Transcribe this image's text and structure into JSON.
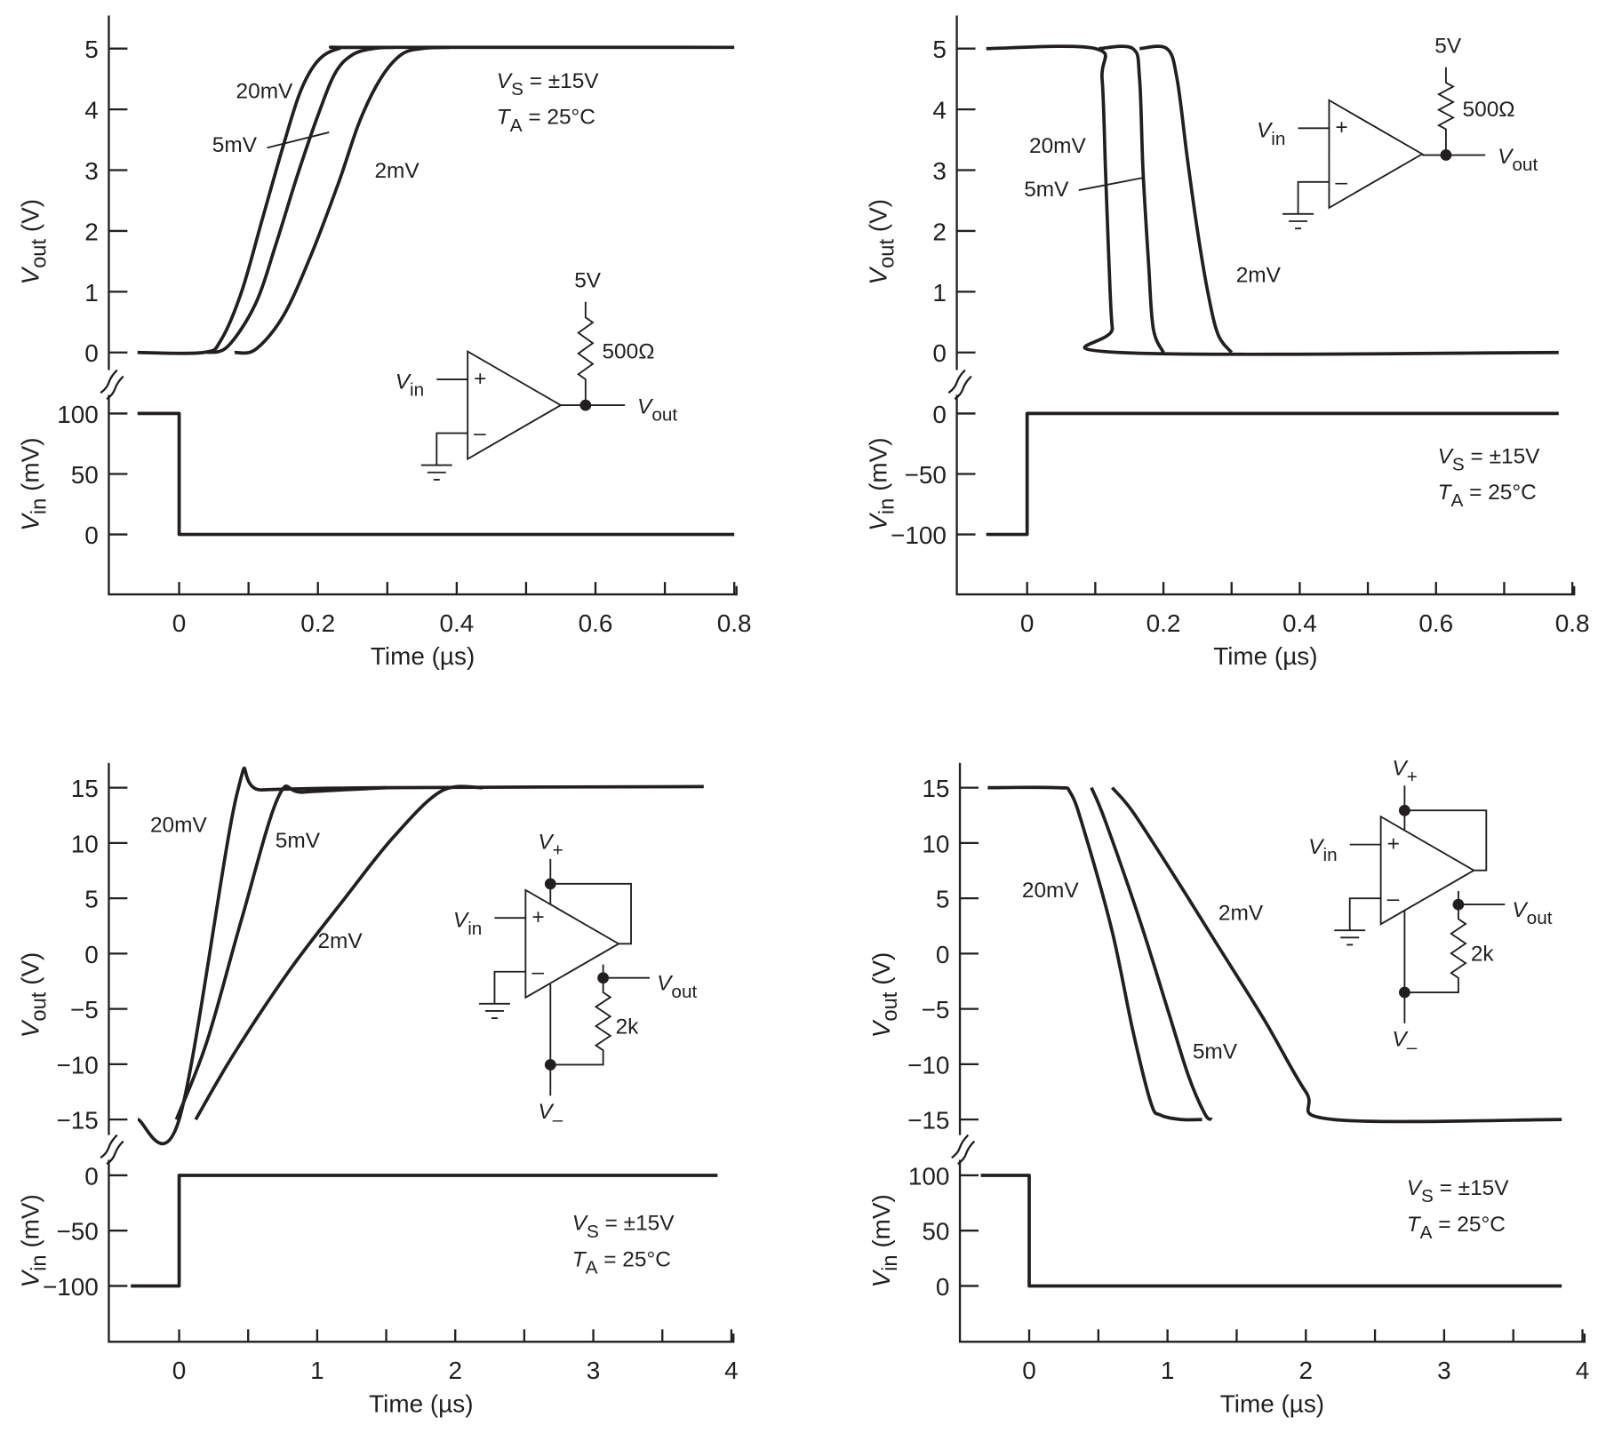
{
  "chart_data": [
    {
      "type": "line",
      "xlabel": "Time (µs)",
      "xlim": [
        -0.1,
        0.8
      ],
      "xticks": [
        "0",
        "0.2",
        "0.4",
        "0.6",
        "0.8"
      ],
      "xtick_values": [
        0,
        0.2,
        0.4,
        0.6,
        0.8
      ],
      "top": {
        "ylabel": {
          "var": "V",
          "sub": "out",
          "unit": " (V)"
        },
        "yticks": [
          0,
          1,
          2,
          3,
          4,
          5
        ],
        "ylim": [
          0,
          5
        ]
      },
      "bottom": {
        "ylabel": {
          "var": "V",
          "sub": "in",
          "unit": " (mV)"
        },
        "yticks": [
          0,
          50,
          100
        ],
        "ylim": [
          0,
          100
        ],
        "input": [
          [
            -0.06,
            100
          ],
          [
            0,
            100
          ],
          [
            0,
            0
          ],
          [
            0.8,
            0
          ]
        ]
      },
      "series": [
        {
          "name": "20mV",
          "points": [
            [
              -0.06,
              0
            ],
            [
              0.035,
              0
            ],
            [
              0.06,
              0.2
            ],
            [
              0.09,
              1
            ],
            [
              0.12,
              2.2
            ],
            [
              0.15,
              3.4
            ],
            [
              0.175,
              4.3
            ],
            [
              0.2,
              4.8
            ],
            [
              0.23,
              5
            ],
            [
              0.27,
              5.02
            ],
            [
              0.8,
              5.02
            ]
          ]
        },
        {
          "name": "5mV",
          "points": [
            [
              0.04,
              0
            ],
            [
              0.07,
              0.1
            ],
            [
              0.11,
              0.8
            ],
            [
              0.14,
              1.8
            ],
            [
              0.17,
              2.9
            ],
            [
              0.2,
              3.9
            ],
            [
              0.225,
              4.6
            ],
            [
              0.25,
              4.9
            ],
            [
              0.28,
              5
            ],
            [
              0.31,
              5.02
            ]
          ]
        },
        {
          "name": "2mV",
          "points": [
            [
              0.08,
              0
            ],
            [
              0.11,
              0.05
            ],
            [
              0.15,
              0.6
            ],
            [
              0.19,
              1.6
            ],
            [
              0.23,
              2.8
            ],
            [
              0.26,
              3.8
            ],
            [
              0.29,
              4.5
            ],
            [
              0.32,
              4.9
            ],
            [
              0.35,
              5
            ],
            [
              0.39,
              5.02
            ]
          ]
        }
      ],
      "curve_labels": [
        "20mV",
        "5mV",
        "2mV"
      ],
      "conditions": {
        "vs": {
          "var": "V",
          "sub": "S",
          "rest": " = ±15V"
        },
        "ta": {
          "var": "T",
          "sub": "A",
          "rest": " = 25°C"
        }
      },
      "circuit": {
        "supply": "5V",
        "resistor": "500Ω",
        "vin": {
          "var": "V",
          "sub": "in"
        },
        "vout": {
          "var": "V",
          "sub": "out"
        },
        "plus": "+",
        "minus": "–"
      }
    },
    {
      "type": "line",
      "xlabel": "Time (µs)",
      "xlim": [
        -0.1,
        0.8
      ],
      "xticks": [
        "0",
        "0.2",
        "0.4",
        "0.6",
        "0.8"
      ],
      "xtick_values": [
        0,
        0.2,
        0.4,
        0.6,
        0.8
      ],
      "top": {
        "ylabel": {
          "var": "V",
          "sub": "out",
          "unit": " (V)"
        },
        "yticks": [
          0,
          1,
          2,
          3,
          4,
          5
        ],
        "ylim": [
          0,
          5
        ]
      },
      "bottom": {
        "ylabel": {
          "var": "V",
          "sub": "in",
          "unit": " (mV)"
        },
        "yticks": [
          -100,
          -50,
          0
        ],
        "ylim": [
          -100,
          0
        ],
        "input": [
          [
            -0.06,
            -100
          ],
          [
            0,
            -100
          ],
          [
            0,
            0
          ],
          [
            0.78,
            0
          ]
        ]
      },
      "series": [
        {
          "name": "20mV",
          "points": [
            [
              -0.06,
              5
            ],
            [
              0.1,
              5
            ],
            [
              0.11,
              4.5
            ],
            [
              0.115,
              3
            ],
            [
              0.12,
              1.5
            ],
            [
              0.125,
              0.4
            ],
            [
              0.135,
              0
            ],
            [
              0.78,
              0
            ]
          ]
        },
        {
          "name": "5mV",
          "points": [
            [
              0.105,
              5
            ],
            [
              0.155,
              5
            ],
            [
              0.165,
              4.5
            ],
            [
              0.17,
              3
            ],
            [
              0.178,
              1.5
            ],
            [
              0.185,
              0.4
            ],
            [
              0.2,
              0
            ]
          ]
        },
        {
          "name": "2mV",
          "points": [
            [
              0.165,
              5
            ],
            [
              0.205,
              5
            ],
            [
              0.22,
              4.5
            ],
            [
              0.235,
              3.2
            ],
            [
              0.25,
              2
            ],
            [
              0.265,
              1
            ],
            [
              0.28,
              0.3
            ],
            [
              0.3,
              0
            ]
          ]
        }
      ],
      "curve_labels": [
        "20mV",
        "5mV",
        "2mV"
      ],
      "conditions": {
        "vs": {
          "var": "V",
          "sub": "S",
          "rest": " = ±15V"
        },
        "ta": {
          "var": "T",
          "sub": "A",
          "rest": " = 25°C"
        }
      },
      "circuit": {
        "supply": "5V",
        "resistor": "500Ω",
        "vin": {
          "var": "V",
          "sub": "in"
        },
        "vout": {
          "var": "V",
          "sub": "out"
        },
        "plus": "+",
        "minus": "–"
      }
    },
    {
      "type": "line",
      "xlabel": "Time (µs)",
      "xlim": [
        -0.5,
        4
      ],
      "xticks": [
        "0",
        "1",
        "2",
        "3",
        "4"
      ],
      "xtick_values": [
        0,
        1,
        2,
        3,
        4
      ],
      "top": {
        "ylabel": {
          "var": "V",
          "sub": "out",
          "unit": " (V)"
        },
        "yticks": [
          -15,
          -10,
          -5,
          0,
          5,
          10,
          15
        ],
        "ylim": [
          -15,
          15
        ]
      },
      "bottom": {
        "ylabel": {
          "var": "V",
          "sub": "in",
          "unit": " (mV)"
        },
        "yticks": [
          -100,
          -50,
          0
        ],
        "ylim": [
          -100,
          0
        ],
        "input": [
          [
            -0.35,
            -100
          ],
          [
            0,
            -100
          ],
          [
            0,
            0
          ],
          [
            3.9,
            0
          ]
        ]
      },
      "series": [
        {
          "name": "20mV",
          "points": [
            [
              -0.3,
              -15
            ],
            [
              0,
              -15
            ],
            [
              0.42,
              14.5
            ],
            [
              0.6,
              14.8
            ],
            [
              1.5,
              15
            ],
            [
              3.8,
              15.1
            ]
          ]
        },
        {
          "name": "5mV",
          "points": [
            [
              -0.02,
              -15
            ],
            [
              0.2,
              -8
            ],
            [
              0.45,
              3
            ],
            [
              0.72,
              14.2
            ],
            [
              0.9,
              14.6
            ],
            [
              1.5,
              15
            ]
          ]
        },
        {
          "name": "2mV",
          "points": [
            [
              0.12,
              -15
            ],
            [
              0.4,
              -9
            ],
            [
              0.8,
              -1.5
            ],
            [
              1.2,
              5
            ],
            [
              1.55,
              10.5
            ],
            [
              1.9,
              14.7
            ],
            [
              2.2,
              15
            ]
          ]
        }
      ],
      "curve_labels": [
        "20mV",
        "5mV",
        "2mV"
      ],
      "conditions": {
        "vs": {
          "var": "V",
          "sub": "S",
          "rest": " = ±15V"
        },
        "ta": {
          "var": "T",
          "sub": "A",
          "rest": " = 25°C"
        }
      },
      "circuit": {
        "vplus": {
          "var": "V",
          "sub": "+"
        },
        "vminus": {
          "var": "V",
          "sub": "–"
        },
        "resistor": "2k",
        "vin": {
          "var": "V",
          "sub": "in"
        },
        "vout": {
          "var": "V",
          "sub": "out"
        },
        "plus": "+",
        "minus": "–"
      }
    },
    {
      "type": "line",
      "xlabel": "Time (µs)",
      "xlim": [
        -0.5,
        4
      ],
      "xticks": [
        "0",
        "1",
        "2",
        "3",
        "4"
      ],
      "xtick_values": [
        0,
        1,
        2,
        3,
        4
      ],
      "top": {
        "ylabel": {
          "var": "V",
          "sub": "out",
          "unit": " (V)"
        },
        "yticks": [
          -15,
          -10,
          -5,
          0,
          5,
          10,
          15
        ],
        "ylim": [
          -15,
          15
        ]
      },
      "bottom": {
        "ylabel": {
          "var": "V",
          "sub": "in",
          "unit": " (mV)"
        },
        "yticks": [
          0,
          50,
          100
        ],
        "ylim": [
          0,
          100
        ],
        "input": [
          [
            -0.35,
            100
          ],
          [
            0,
            100
          ],
          [
            0,
            0
          ],
          [
            3.85,
            0
          ]
        ]
      },
      "series": [
        {
          "name": "20mV",
          "points": [
            [
              -0.3,
              15
            ],
            [
              0.2,
              15
            ],
            [
              0.3,
              14.5
            ],
            [
              0.4,
              11
            ],
            [
              0.6,
              2
            ],
            [
              0.75,
              -7
            ],
            [
              0.88,
              -13.5
            ],
            [
              0.95,
              -14.6
            ],
            [
              1.1,
              -15
            ],
            [
              1.25,
              -15
            ]
          ]
        },
        {
          "name": "5mV",
          "points": [
            [
              0.45,
              15
            ],
            [
              0.55,
              12
            ],
            [
              0.8,
              3
            ],
            [
              1.0,
              -5
            ],
            [
              1.15,
              -11
            ],
            [
              1.27,
              -14.5
            ],
            [
              1.32,
              -15
            ]
          ]
        },
        {
          "name": "2mV",
          "points": [
            [
              0.6,
              15
            ],
            [
              0.75,
              12.8
            ],
            [
              1.05,
              7
            ],
            [
              1.35,
              1
            ],
            [
              1.7,
              -6
            ],
            [
              2.0,
              -12.5
            ],
            [
              2.2,
              -15
            ],
            [
              3.85,
              -15
            ]
          ]
        }
      ],
      "curve_labels": [
        "20mV",
        "5mV",
        "2mV"
      ],
      "conditions": {
        "vs": {
          "var": "V",
          "sub": "S",
          "rest": " = ±15V"
        },
        "ta": {
          "var": "T",
          "sub": "A",
          "rest": " = 25°C"
        }
      },
      "circuit": {
        "vplus": {
          "var": "V",
          "sub": "+"
        },
        "vminus": {
          "var": "V",
          "sub": "–"
        },
        "resistor": "2k",
        "vin": {
          "var": "V",
          "sub": "in"
        },
        "vout": {
          "var": "V",
          "sub": "out"
        },
        "plus": "+",
        "minus": "–"
      }
    }
  ]
}
